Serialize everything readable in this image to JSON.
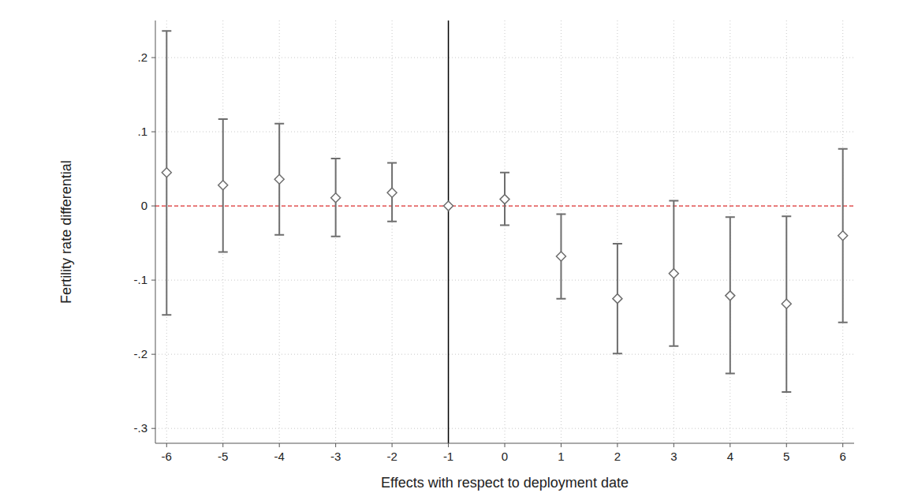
{
  "chart_data": {
    "type": "scatter",
    "x_label": "Effects with respect to deployment date",
    "y_label": "Fertility rate differential",
    "x": [
      -6,
      -5,
      -4,
      -3,
      -2,
      -1,
      0,
      1,
      2,
      3,
      4,
      5,
      6
    ],
    "values": [
      0.045,
      0.028,
      0.036,
      0.011,
      0.018,
      0,
      0.009,
      -0.068,
      -0.125,
      -0.091,
      -0.121,
      -0.132,
      -0.04
    ],
    "lower": [
      -0.147,
      -0.062,
      -0.039,
      -0.041,
      -0.021,
      null,
      -0.026,
      -0.125,
      -0.199,
      -0.189,
      -0.226,
      -0.251,
      -0.157
    ],
    "upper": [
      0.236,
      0.117,
      0.111,
      0.064,
      0.058,
      null,
      0.045,
      -0.011,
      -0.051,
      0.007,
      -0.015,
      -0.014,
      0.077
    ],
    "xlim": [
      -6.2,
      6.2
    ],
    "ylim": [
      -0.32,
      0.25
    ],
    "xticks": [
      -6,
      -5,
      -4,
      -3,
      -2,
      -1,
      0,
      1,
      2,
      3,
      4,
      5,
      6
    ],
    "yticks": [
      {
        "value": -0.3,
        "label": "-.3"
      },
      {
        "value": -0.2,
        "label": "-.2"
      },
      {
        "value": -0.1,
        "label": "-.1"
      },
      0,
      {
        "value": 0.1,
        "label": ".1"
      },
      {
        "value": 0.2,
        "label": ".2"
      }
    ],
    "grid": true,
    "marker": "diamond",
    "color": "#6e6e6e",
    "xline": -1,
    "yline": 0
  }
}
